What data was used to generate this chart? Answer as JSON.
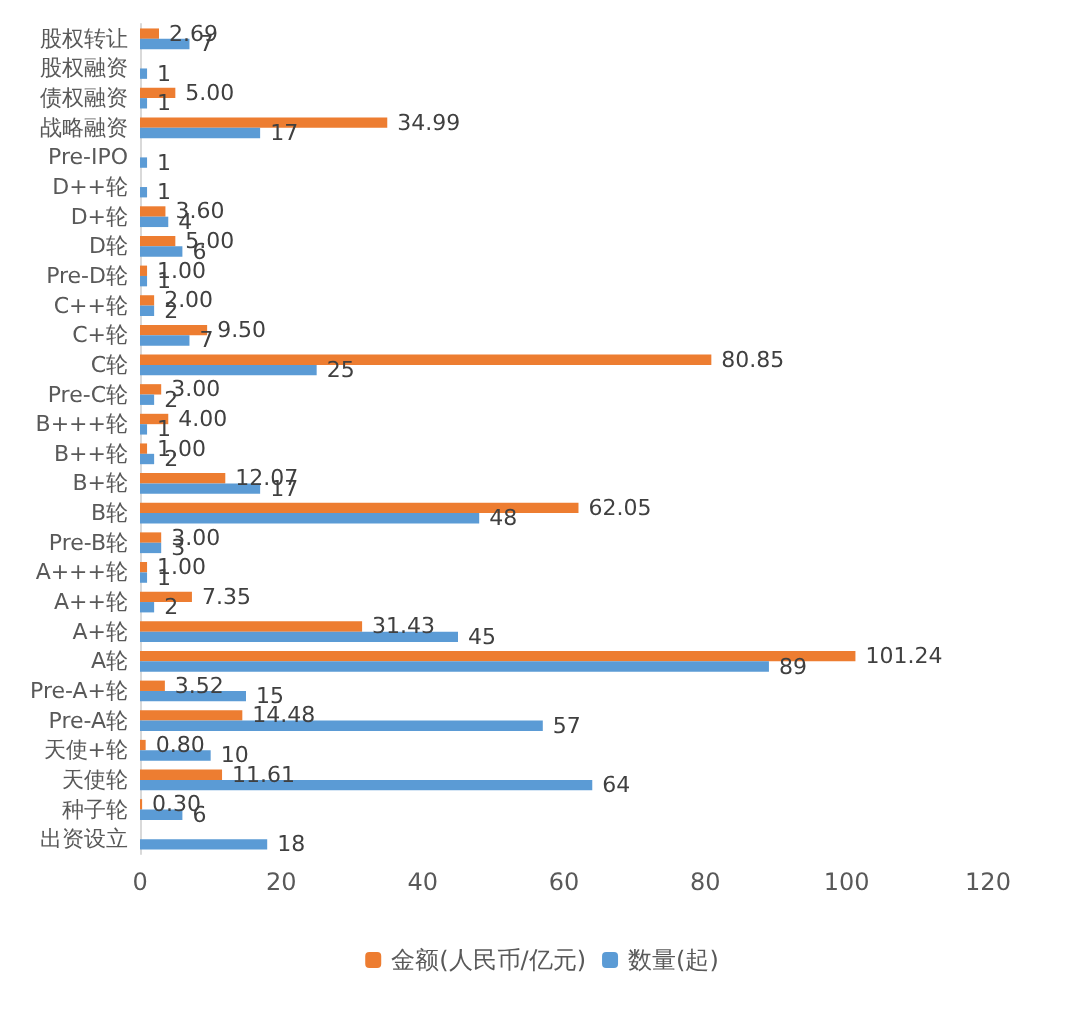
{
  "chart_data": {
    "type": "bar",
    "orientation": "horizontal",
    "categories": [
      "股权转让",
      "股权融资",
      "债权融资",
      "战略融资",
      "Pre-IPO",
      "D++轮",
      "D+轮",
      "D轮",
      "Pre-D轮",
      "C++轮",
      "C+轮",
      "C轮",
      "Pre-C轮",
      "B+++轮",
      "B++轮",
      "B+轮",
      "B轮",
      "Pre-B轮",
      "A+++轮",
      "A++轮",
      "A+轮",
      "A轮",
      "Pre-A+轮",
      "Pre-A轮",
      "天使+轮",
      "天使轮",
      "种子轮",
      "出资设立"
    ],
    "series": [
      {
        "name": "金额(人民币/亿元)",
        "color": "#ed7d31",
        "values": [
          2.69,
          null,
          5.0,
          34.99,
          null,
          null,
          3.6,
          5.0,
          1.0,
          2.0,
          9.5,
          80.85,
          3.0,
          4.0,
          1.0,
          12.07,
          62.05,
          3.0,
          1.0,
          7.35,
          31.43,
          101.24,
          3.52,
          14.48,
          0.8,
          11.61,
          0.3,
          null
        ],
        "value_labels": [
          "2.69",
          null,
          "5.00",
          "34.99",
          null,
          null,
          "3.60",
          "5.00",
          "1.00",
          "2.00",
          "9.50",
          "80.85",
          "3.00",
          "4.00",
          "1.00",
          "12.07",
          "62.05",
          "3.00",
          "1.00",
          "7.35",
          "31.43",
          "101.24",
          "3.52",
          "14.48",
          "0.80",
          "11.61",
          "0.30",
          null
        ]
      },
      {
        "name": "数量(起)",
        "color": "#5b9bd5",
        "values": [
          7,
          1,
          1,
          17,
          1,
          1,
          4,
          6,
          1,
          2,
          7,
          25,
          2,
          1,
          2,
          17,
          48,
          3,
          1,
          2,
          45,
          89,
          15,
          57,
          10,
          64,
          6,
          18
        ],
        "value_labels": [
          "7",
          "1",
          "1",
          "17",
          "1",
          "1",
          "4",
          "6",
          "1",
          "2",
          "7",
          "25",
          "2",
          "1",
          "2",
          "17",
          "48",
          "3",
          "1",
          "2",
          "45",
          "89",
          "15",
          "57",
          "10",
          "64",
          "6",
          "18"
        ]
      }
    ],
    "xlim": [
      0,
      120
    ],
    "xticks": [
      0,
      20,
      40,
      60,
      80,
      100,
      120
    ],
    "grid": false,
    "legend": "bottom"
  }
}
